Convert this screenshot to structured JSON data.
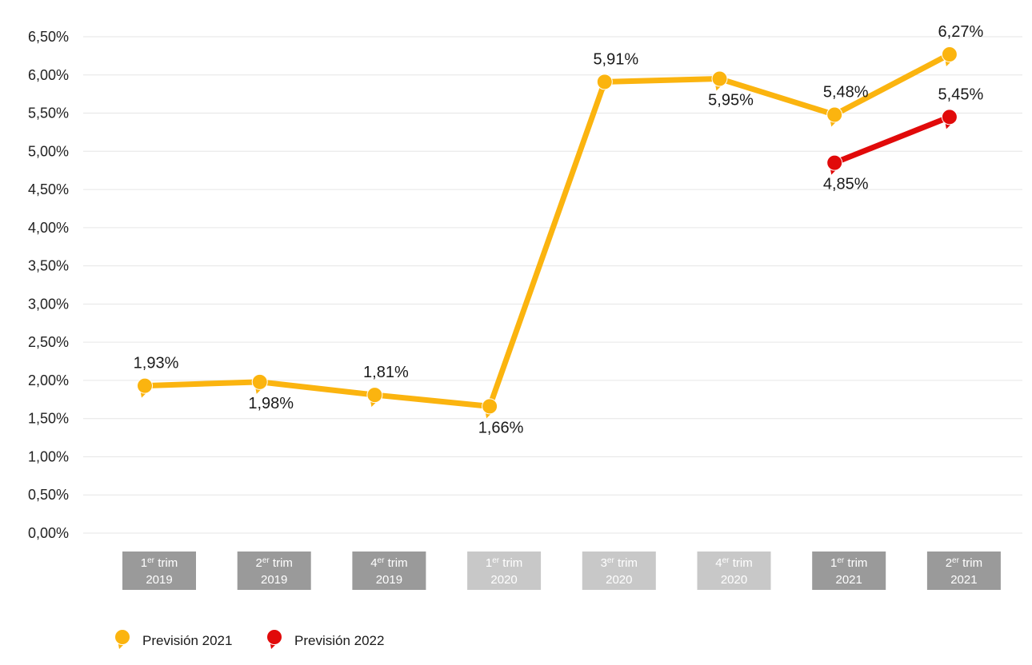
{
  "chart_data": {
    "type": "line",
    "categories": [
      {
        "sup_prefix": "1",
        "sup": "er",
        "word": "trim",
        "year": "2019",
        "shade": "dark"
      },
      {
        "sup_prefix": "2",
        "sup": "er",
        "word": "trim",
        "year": "2019",
        "shade": "dark"
      },
      {
        "sup_prefix": "4",
        "sup": "er",
        "word": "trim",
        "year": "2019",
        "shade": "dark"
      },
      {
        "sup_prefix": "1",
        "sup": "er",
        "word": "trim",
        "year": "2020",
        "shade": "light"
      },
      {
        "sup_prefix": "3",
        "sup": "er",
        "word": "trim",
        "year": "2020",
        "shade": "light"
      },
      {
        "sup_prefix": "4",
        "sup": "er",
        "word": "trim",
        "year": "2020",
        "shade": "light"
      },
      {
        "sup_prefix": "1",
        "sup": "er",
        "word": "trim",
        "year": "2021",
        "shade": "dark"
      },
      {
        "sup_prefix": "2",
        "sup": "er",
        "word": "trim",
        "year": "2021",
        "shade": "dark"
      }
    ],
    "series": [
      {
        "name": "Previsión 2021",
        "color": "#FBB40F",
        "values": [
          1.93,
          1.98,
          1.81,
          1.66,
          5.91,
          5.95,
          5.48,
          6.27
        ],
        "labels": [
          "1,93%",
          "1,98%",
          "1,81%",
          "1,66%",
          "5,91%",
          "5,95%",
          "5,48%",
          "6,27%"
        ],
        "label_pos": [
          "above",
          "below",
          "above",
          "below",
          "above",
          "below",
          "above",
          "above"
        ]
      },
      {
        "name": "Previsión 2022",
        "color": "#E10A0A",
        "values": [
          null,
          null,
          null,
          null,
          null,
          null,
          4.85,
          5.45
        ],
        "labels": [
          null,
          null,
          null,
          null,
          null,
          null,
          "4,85%",
          "5,45%"
        ],
        "label_pos": [
          null,
          null,
          null,
          null,
          null,
          null,
          "below",
          "above"
        ]
      }
    ],
    "ylim": [
      0,
      6.5
    ],
    "yticks": [
      0,
      0.5,
      1,
      1.5,
      2,
      2.5,
      3,
      3.5,
      4,
      4.5,
      5,
      5.5,
      6,
      6.5
    ],
    "ytick_labels": [
      "0,00%",
      "0,50%",
      "1,00%",
      "1,50%",
      "2,00%",
      "2,50%",
      "3,00%",
      "3,50%",
      "4,00%",
      "4,50%",
      "5,00%",
      "5,50%",
      "6,00%",
      "6,50%"
    ],
    "grid": true,
    "legend_position": "bottom-left",
    "colors": {
      "grid": "#e6e6e6",
      "label_box_dark": "#9a9a9a",
      "label_box_light": "#c8c8c8"
    }
  }
}
